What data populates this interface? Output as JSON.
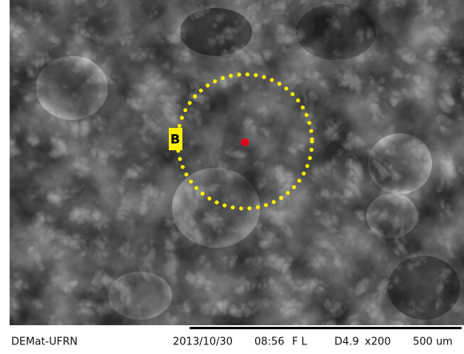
{
  "annotation": {
    "label": "B"
  },
  "footer": {
    "lab": "DEMat-UFRN",
    "date": "2013/10/30",
    "time": "08:56",
    "mode": "F L",
    "distance": "D4.9",
    "magnification": "x200",
    "scale": "500 um"
  }
}
